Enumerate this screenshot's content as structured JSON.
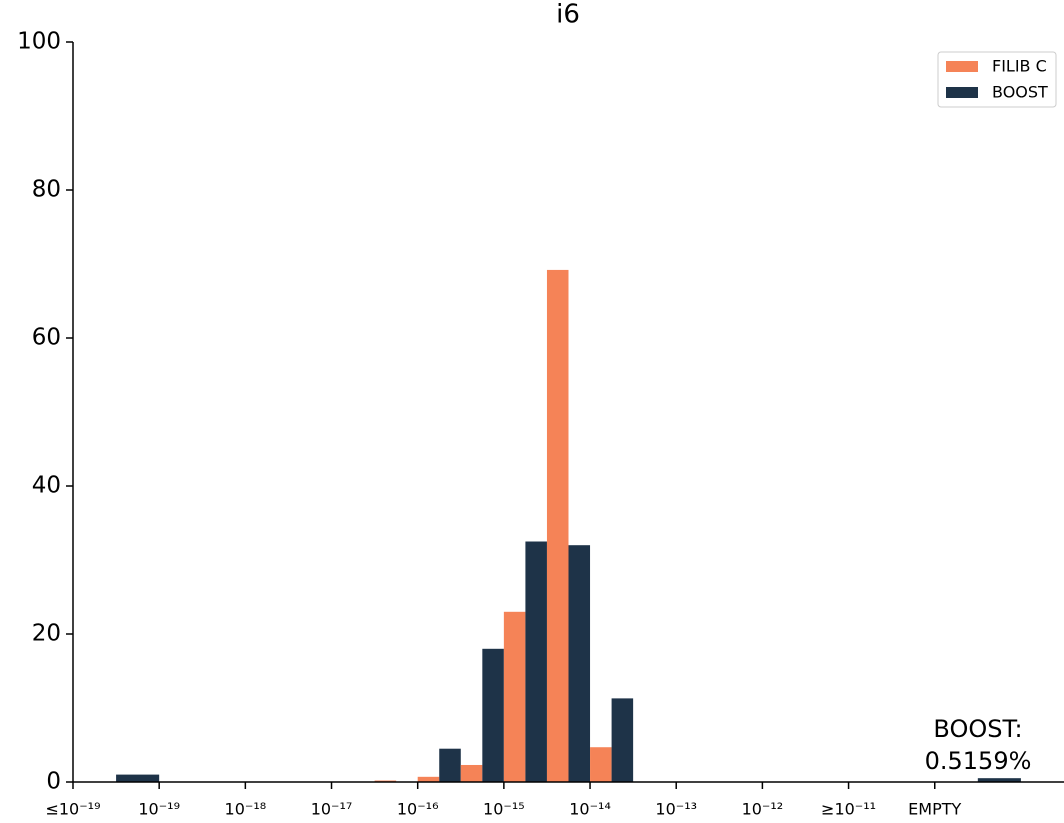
{
  "chart_data": {
    "type": "histogram",
    "title": "i6",
    "bins": [
      0,
      0.5,
      1,
      1.5,
      2,
      2.5,
      3,
      3.5,
      4,
      4.5,
      5,
      5.5,
      6,
      6.5,
      7,
      7.5,
      8,
      8.5,
      9,
      9.5,
      10,
      10.5,
      11,
      11.5
    ],
    "series": [
      {
        "name": "FILIB C",
        "color": "#f58357",
        "values": [
          0,
          null,
          0,
          0,
          0,
          0,
          0,
          0.2,
          0.7,
          2.3,
          23,
          69.2,
          4.7,
          0,
          0,
          0,
          0,
          0,
          0,
          0,
          0,
          null,
          0
        ]
      },
      {
        "name": "BOOST",
        "color": "#1e3348",
        "values": [
          0,
          1.0,
          0,
          0,
          0,
          0,
          0,
          0,
          4.5,
          18,
          32.5,
          32,
          11.3,
          0,
          0,
          0,
          0,
          0,
          0,
          0,
          0,
          0.5159,
          0
        ]
      }
    ],
    "xlim": [
      0,
      11.5
    ],
    "xticks": [
      {
        "value": 0,
        "label": "≤10⁻¹⁹"
      },
      {
        "value": 1,
        "label": "10⁻¹⁹"
      },
      {
        "value": 2,
        "label": "10⁻¹⁸"
      },
      {
        "value": 3,
        "label": "10⁻¹⁷"
      },
      {
        "value": 4,
        "label": "10⁻¹⁶"
      },
      {
        "value": 5,
        "label": "10⁻¹⁵"
      },
      {
        "value": 6,
        "label": "10⁻¹⁴"
      },
      {
        "value": 7,
        "label": "10⁻¹³"
      },
      {
        "value": 8,
        "label": "10⁻¹²"
      },
      {
        "value": 9,
        "label": "≥10⁻¹¹"
      },
      {
        "value": 10,
        "label": "EMPTY"
      }
    ],
    "ylim": [
      0,
      100
    ],
    "yticks": [
      0,
      20,
      40,
      60,
      80,
      100
    ],
    "legend": "upper right",
    "annotation": [
      "BOOST:",
      "0.5159%"
    ]
  }
}
